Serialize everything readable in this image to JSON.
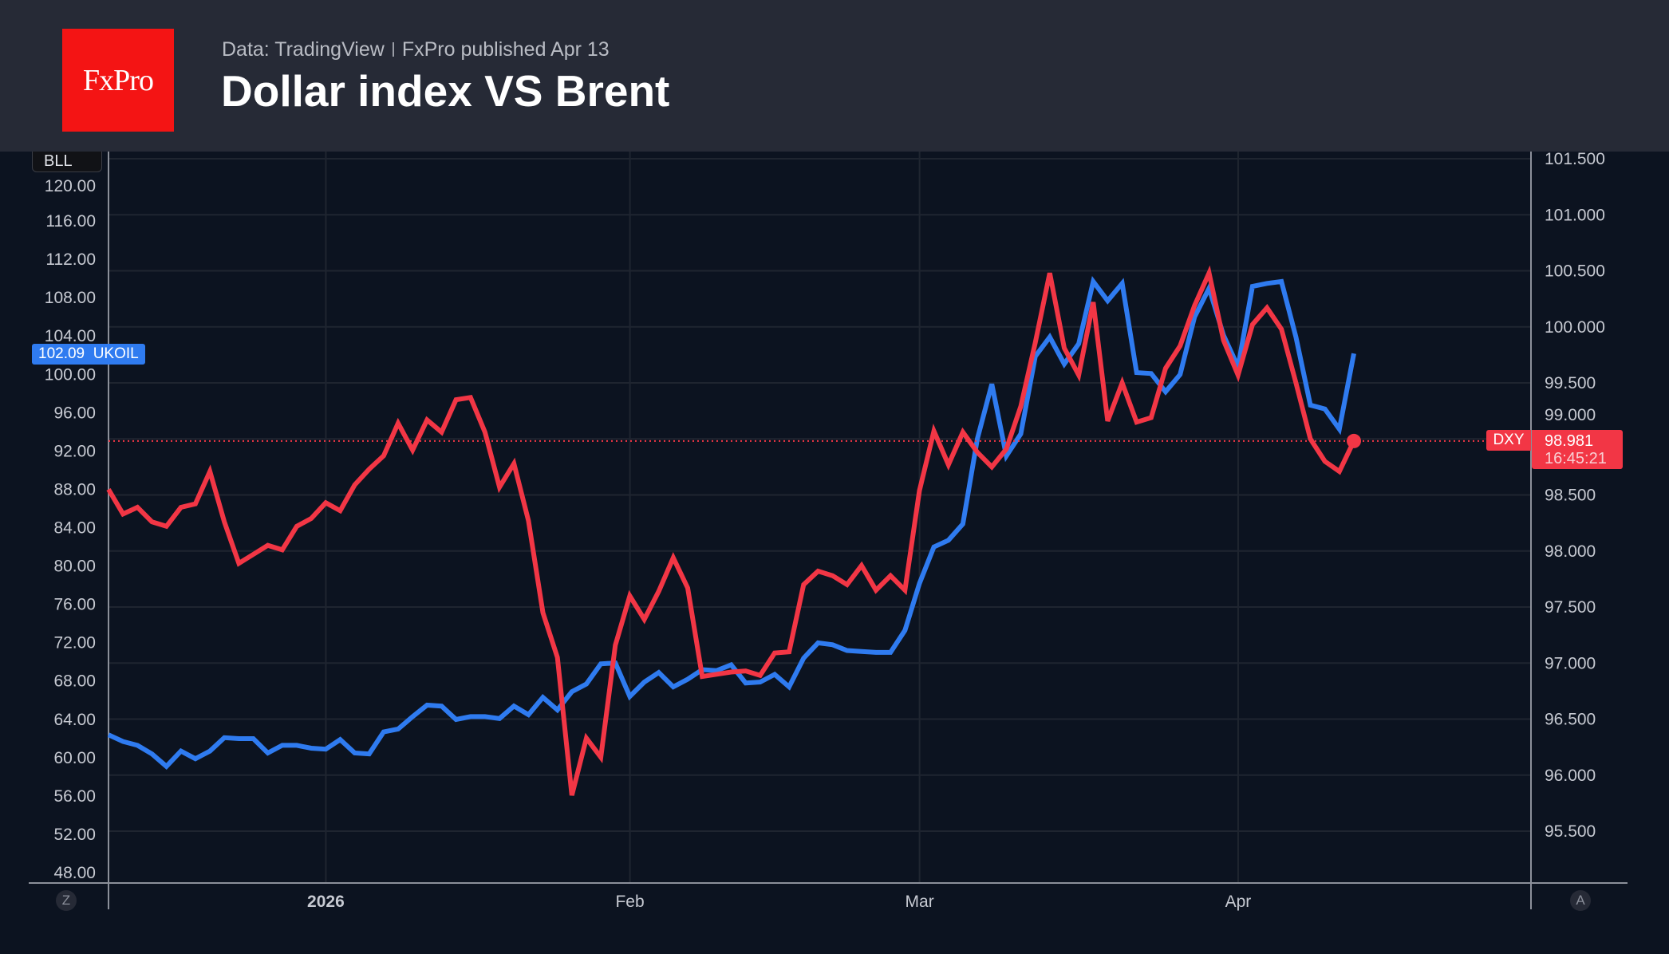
{
  "header": {
    "logo_text": "FxPro",
    "source": "Data: TradingView",
    "published": "FxPro published Apr 13",
    "title": "Dollar index VS Brent"
  },
  "badges": {
    "scale_label": "BLL",
    "ukoil_value": "102.09",
    "ukoil_name": "UKOIL",
    "dxy_name": "DXY",
    "dxy_value": "98.981",
    "dxy_countdown": "16:45:21",
    "left_corner": "Z",
    "right_corner": "A"
  },
  "chart_data": {
    "type": "line",
    "title": "Dollar index VS Brent",
    "grid": true,
    "x": [
      "2025-12-09",
      "2025-12-10",
      "2025-12-11",
      "2025-12-12",
      "2025-12-15",
      "2025-12-16",
      "2025-12-17",
      "2025-12-18",
      "2025-12-19",
      "2025-12-22",
      "2025-12-23",
      "2025-12-24",
      "2025-12-26",
      "2025-12-29",
      "2025-12-30",
      "2025-12-31",
      "2026-01-02",
      "2026-01-05",
      "2026-01-06",
      "2026-01-07",
      "2026-01-08",
      "2026-01-09",
      "2026-01-12",
      "2026-01-13",
      "2026-01-14",
      "2026-01-15",
      "2026-01-16",
      "2026-01-19",
      "2026-01-20",
      "2026-01-21",
      "2026-01-22",
      "2026-01-23",
      "2026-01-26",
      "2026-01-27",
      "2026-01-28",
      "2026-01-29",
      "2026-01-30",
      "2026-02-02",
      "2026-02-03",
      "2026-02-04",
      "2026-02-05",
      "2026-02-06",
      "2026-02-09",
      "2026-02-10",
      "2026-02-11",
      "2026-02-12",
      "2026-02-13",
      "2026-02-16",
      "2026-02-17",
      "2026-02-18",
      "2026-02-19",
      "2026-02-20",
      "2026-02-23",
      "2026-02-24",
      "2026-02-25",
      "2026-02-26",
      "2026-02-27",
      "2026-03-02",
      "2026-03-03",
      "2026-03-04",
      "2026-03-05",
      "2026-03-06",
      "2026-03-09",
      "2026-03-10",
      "2026-03-11",
      "2026-03-12",
      "2026-03-13",
      "2026-03-16",
      "2026-03-17",
      "2026-03-18",
      "2026-03-19",
      "2026-03-20",
      "2026-03-23",
      "2026-03-24",
      "2026-03-25",
      "2026-03-26",
      "2026-03-27",
      "2026-03-30",
      "2026-03-31",
      "2026-04-01",
      "2026-04-02",
      "2026-04-03",
      "2026-04-06",
      "2026-04-07",
      "2026-04-08",
      "2026-04-09",
      "2026-04-10"
    ],
    "x_ticks": [
      {
        "label": "2026",
        "date": "2026-01-02",
        "bold": true
      },
      {
        "label": "Feb",
        "date": "2026-02-02"
      },
      {
        "label": "Mar",
        "date": "2026-03-02"
      },
      {
        "label": "Apr",
        "date": "2026-04-01"
      }
    ],
    "left_axis": {
      "ylim": [
        48,
        120
      ],
      "ticks": [
        "120.00",
        "116.00",
        "112.00",
        "108.00",
        "104.00",
        "100.00",
        "96.00",
        "92.00",
        "88.00",
        "84.00",
        "80.00",
        "76.00",
        "72.00",
        "68.00",
        "64.00",
        "60.00",
        "56.00",
        "52.00",
        "48.00"
      ]
    },
    "right_axis": {
      "ylim": [
        95.5,
        101.5
      ],
      "ticks": [
        "101.500",
        "101.000",
        "100.500",
        "100.000",
        "99.500",
        "99.000",
        "98.500",
        "98.000",
        "97.500",
        "97.000",
        "96.500",
        "96.000",
        "95.500"
      ]
    },
    "series": [
      {
        "name": "UKOIL",
        "axis": "left",
        "color": "#2f7bf0",
        "values": [
          62.3,
          61.6,
          61.2,
          60.3,
          59.0,
          60.6,
          59.8,
          60.6,
          62.0,
          61.9,
          61.9,
          60.4,
          61.2,
          61.2,
          60.9,
          60.8,
          61.8,
          60.4,
          60.3,
          62.6,
          62.9,
          64.2,
          65.4,
          65.3,
          63.9,
          64.2,
          64.2,
          64.0,
          65.3,
          64.4,
          66.2,
          64.9,
          66.8,
          67.6,
          69.7,
          69.8,
          66.3,
          67.8,
          68.8,
          67.3,
          68.1,
          69.1,
          69.0,
          69.6,
          67.7,
          67.8,
          68.6,
          67.3,
          70.3,
          71.9,
          71.7,
          71.1,
          71.0,
          70.9,
          70.9,
          73.2,
          78.1,
          81.9,
          82.6,
          84.3,
          93.2,
          98.9,
          91.4,
          93.7,
          101.8,
          103.8,
          101.0,
          103.1,
          109.6,
          107.6,
          109.4,
          100.1,
          100.0,
          98.1,
          99.9,
          105.9,
          108.9,
          104.0,
          100.7,
          109.1,
          109.4,
          109.6,
          103.8,
          96.7,
          96.3,
          94.2,
          102.09
        ]
      },
      {
        "name": "DXY",
        "axis": "right",
        "color": "#f23645",
        "values": [
          98.55,
          98.33,
          98.39,
          98.26,
          98.22,
          98.39,
          98.42,
          98.71,
          98.26,
          97.89,
          97.97,
          98.05,
          98.01,
          98.22,
          98.29,
          98.43,
          98.36,
          98.59,
          98.73,
          98.85,
          99.14,
          98.9,
          99.17,
          99.06,
          99.35,
          99.37,
          99.06,
          98.57,
          98.78,
          98.27,
          97.45,
          97.05,
          95.82,
          96.33,
          96.16,
          97.16,
          97.6,
          97.39,
          97.64,
          97.94,
          97.67,
          96.88,
          96.9,
          96.92,
          96.93,
          96.89,
          97.09,
          97.1,
          97.7,
          97.82,
          97.78,
          97.7,
          97.87,
          97.65,
          97.78,
          97.65,
          98.54,
          99.07,
          98.77,
          99.06,
          98.88,
          98.75,
          98.91,
          99.29,
          99.86,
          100.48,
          99.81,
          99.57,
          100.22,
          99.16,
          99.5,
          99.15,
          99.19,
          99.63,
          99.83,
          100.19,
          100.48,
          99.88,
          99.57,
          100.02,
          100.17,
          99.98,
          99.5,
          99.0,
          98.8,
          98.71,
          98.981
        ]
      }
    ]
  }
}
